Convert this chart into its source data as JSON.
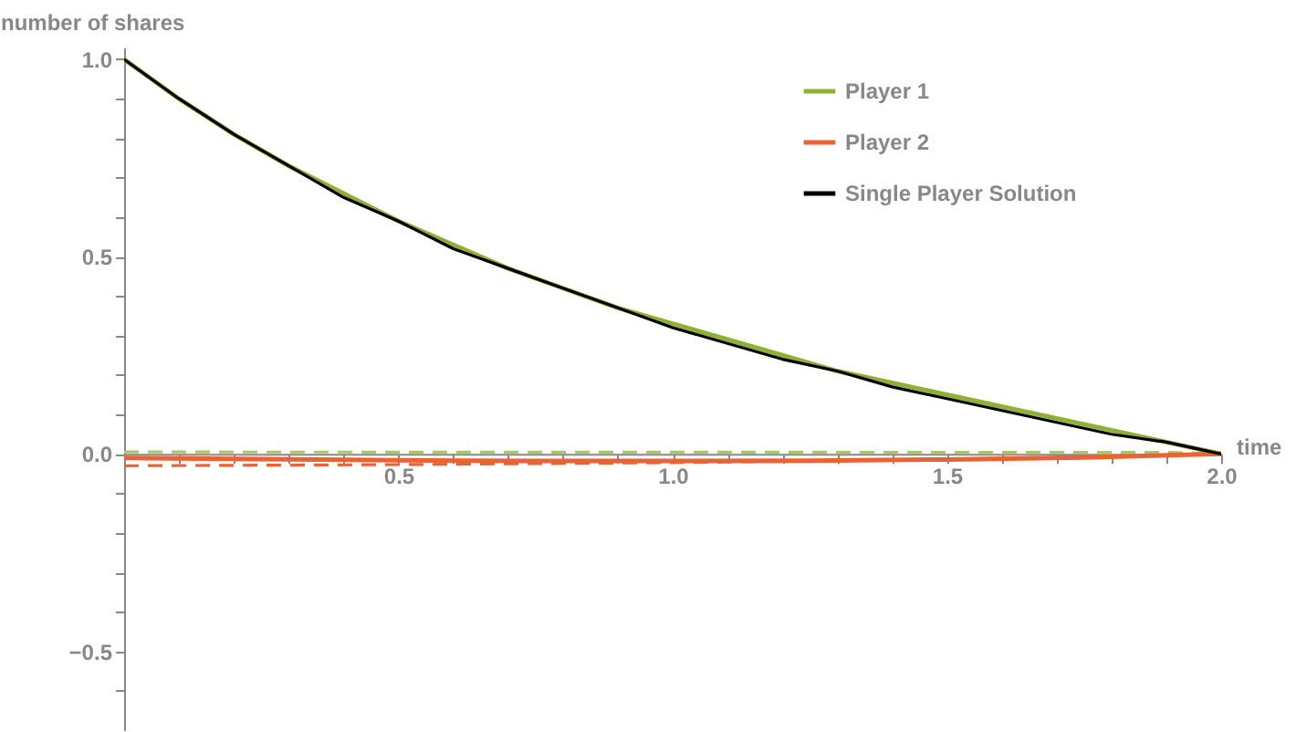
{
  "chart_data": {
    "type": "line",
    "xlabel": "time",
    "ylabel": "number of shares",
    "x": [
      0,
      0.1,
      0.2,
      0.3,
      0.4,
      0.5,
      0.6,
      0.7,
      0.8,
      0.9,
      1.0,
      1.1,
      1.2,
      1.3,
      1.4,
      1.5,
      1.6,
      1.7,
      1.8,
      1.9,
      2.0
    ],
    "series": [
      {
        "color": "#a8c66c",
        "line_style": "dashed",
        "x": [
          0,
          1.9,
          2.0
        ],
        "values": [
          0.005,
          0.004,
          0
        ]
      },
      {
        "color": "#eb6235",
        "line_style": "dashed",
        "x": [
          0,
          0.5,
          1.0,
          1.5,
          2.0
        ],
        "values": [
          -0.03,
          -0.027,
          -0.022,
          -0.014,
          0
        ]
      },
      {
        "name": "Player 1",
        "color": "#8fb032",
        "values": [
          1,
          0.9,
          0.81,
          0.73,
          0.66,
          0.59,
          0.53,
          0.47,
          0.42,
          0.37,
          0.33,
          0.29,
          0.25,
          0.21,
          0.18,
          0.15,
          0.12,
          0.09,
          0.06,
          0.03,
          0
        ]
      },
      {
        "name": "Player 2",
        "color": "#eb6235",
        "x": [
          0,
          0.25,
          0.5,
          0.75,
          1.0,
          1.25,
          1.5,
          1.75,
          2.0
        ],
        "values": [
          -0.01,
          -0.013,
          -0.016,
          -0.018,
          -0.018,
          -0.017,
          -0.014,
          -0.009,
          0
        ]
      },
      {
        "name": "Single Player Solution",
        "color": "#000000",
        "values": [
          1,
          0.9,
          0.81,
          0.73,
          0.65,
          0.59,
          0.52,
          0.47,
          0.42,
          0.37,
          0.32,
          0.28,
          0.24,
          0.21,
          0.17,
          0.14,
          0.11,
          0.08,
          0.05,
          0.03,
          0
        ]
      }
    ],
    "xlim": [
      0,
      2.0
    ],
    "ylim": [
      -0.7,
      1.03
    ],
    "xticks": [
      {
        "value": 0.1,
        "label": null
      },
      {
        "value": 0.2,
        "label": null
      },
      {
        "value": 0.3,
        "label": null
      },
      {
        "value": 0.4,
        "label": null
      },
      0.5,
      {
        "value": 0.6,
        "label": null
      },
      {
        "value": 0.7,
        "label": null
      },
      {
        "value": 0.8,
        "label": null
      },
      {
        "value": 0.9,
        "label": null
      },
      {
        "value": 1.0,
        "label": "1.0"
      },
      {
        "value": 1.1,
        "label": null
      },
      {
        "value": 1.2,
        "label": null
      },
      {
        "value": 1.3,
        "label": null
      },
      {
        "value": 1.4,
        "label": null
      },
      1.5,
      {
        "value": 1.6,
        "label": null
      },
      {
        "value": 1.7,
        "label": null
      },
      {
        "value": 1.8,
        "label": null
      },
      {
        "value": 1.9,
        "label": null
      },
      {
        "value": 2.0,
        "label": "2.0"
      }
    ],
    "yticks": [
      {
        "value": -0.6,
        "label": null
      },
      {
        "value": -0.5,
        "label": "−0.5"
      },
      {
        "value": -0.4,
        "label": null
      },
      {
        "value": -0.3,
        "label": null
      },
      {
        "value": -0.2,
        "label": null
      },
      {
        "value": -0.1,
        "label": null
      },
      {
        "value": 0,
        "label": "0.0"
      },
      {
        "value": 0.1,
        "label": null
      },
      {
        "value": 0.2,
        "label": null
      },
      {
        "value": 0.3,
        "label": null
      },
      {
        "value": 0.4,
        "label": null
      },
      0.5,
      {
        "value": 0.6,
        "label": null
      },
      {
        "value": 0.7,
        "label": null
      },
      {
        "value": 0.8,
        "label": null
      },
      {
        "value": 0.9,
        "label": null
      },
      {
        "value": 1.0,
        "label": "1.0"
      }
    ],
    "grid": false,
    "legend": "top right"
  }
}
